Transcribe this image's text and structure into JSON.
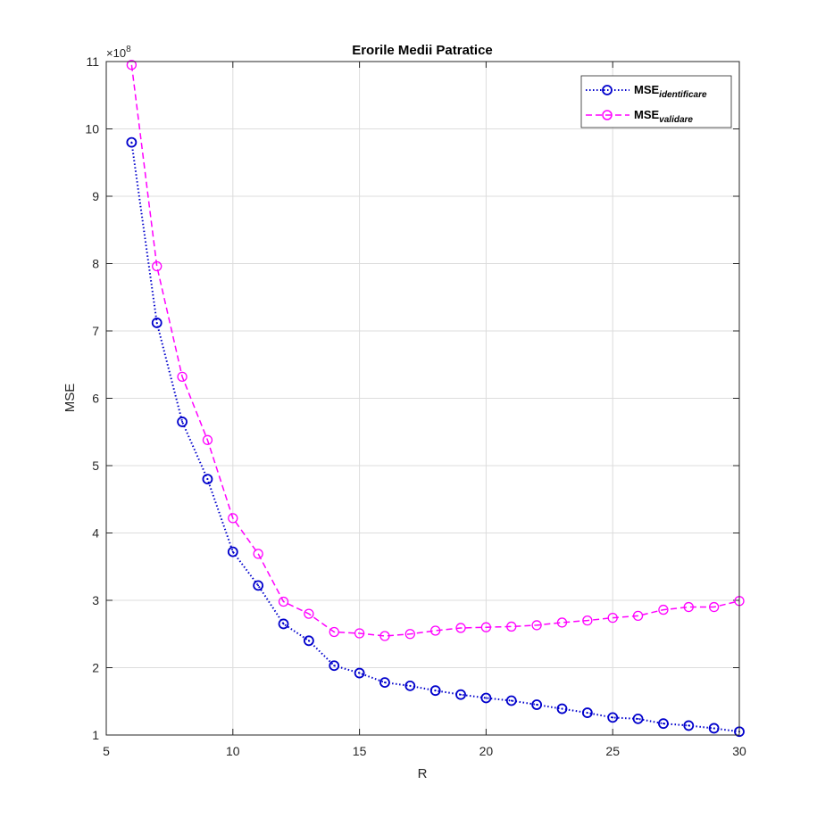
{
  "chart_data": {
    "type": "line",
    "title": "Erorile Medii Patratice",
    "xlabel": "R",
    "ylabel": "MSE",
    "xlim": [
      5,
      30
    ],
    "ylim": [
      100000000,
      1100000000
    ],
    "xticks": [
      5,
      10,
      15,
      20,
      25,
      30
    ],
    "xtick_labels": [
      "5",
      "10",
      "15",
      "20",
      "25",
      "30"
    ],
    "yticks": [
      100000000,
      200000000,
      300000000,
      400000000,
      500000000,
      600000000,
      700000000,
      800000000,
      900000000,
      1000000000,
      1100000000
    ],
    "ytick_labels": [
      "1",
      "2",
      "3",
      "4",
      "5",
      "6",
      "7",
      "8",
      "9",
      "10",
      "11"
    ],
    "y_exponent_label": "×10",
    "y_exponent_power": "8",
    "grid": true,
    "legend_position": "top-right",
    "x": [
      6,
      7,
      8,
      9,
      10,
      11,
      12,
      13,
      14,
      15,
      16,
      17,
      18,
      19,
      20,
      21,
      22,
      23,
      24,
      25,
      26,
      27,
      28,
      29,
      30
    ],
    "series": [
      {
        "name": "MSE",
        "name_subscript": "identificare",
        "color": "#0000cc",
        "line_style": "dotted",
        "marker": "circle",
        "values": [
          980000000,
          712000000,
          565000000,
          480000000,
          372000000,
          322000000,
          265000000,
          240000000,
          203000000,
          192000000,
          178000000,
          173000000,
          166000000,
          160000000,
          155000000,
          151000000,
          145000000,
          139000000,
          133000000,
          126000000,
          124000000,
          117000000,
          114000000,
          110000000,
          105000000
        ]
      },
      {
        "name": "MSE",
        "name_subscript": "validare",
        "color": "#ff00ff",
        "line_style": "dashed",
        "marker": "circle",
        "values": [
          1095000000,
          796000000,
          632000000,
          538000000,
          422000000,
          369000000,
          298000000,
          280000000,
          253000000,
          251000000,
          247000000,
          250000000,
          255000000,
          259000000,
          260000000,
          261000000,
          263000000,
          267000000,
          270000000,
          274000000,
          277000000,
          286000000,
          290000000,
          290000000,
          299000000
        ]
      }
    ]
  }
}
